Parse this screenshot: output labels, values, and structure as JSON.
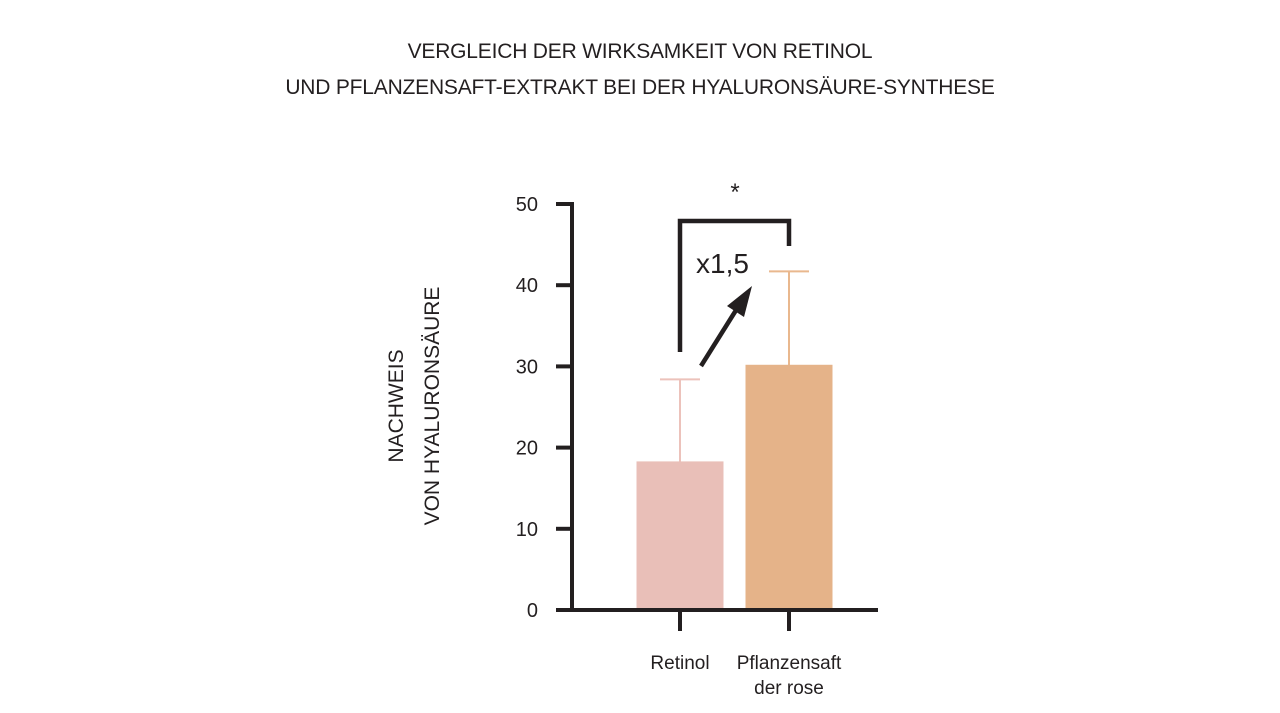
{
  "chart_data": {
    "type": "bar",
    "title_lines": [
      "VERGLEICH DER WIRKSAMKEIT VON RETINOL",
      "UND PFLANZENSAFT-EXTRAKT BEI DER HYALURONSÄURE-SYNTHESE"
    ],
    "ylabel_lines": [
      "NACHWEIS",
      "VON HYALURONSÄURE"
    ],
    "xlabel": "",
    "ylim": [
      0,
      50
    ],
    "yticks": [
      0,
      10,
      20,
      30,
      40,
      50
    ],
    "categories": [
      {
        "label_lines": [
          "Retinol"
        ]
      },
      {
        "label_lines": [
          "Pflanzensaft",
          "der rose"
        ]
      }
    ],
    "values": [
      18.3,
      30.2
    ],
    "error_upper": [
      28.4,
      41.7
    ],
    "colors": [
      "#e9bfb8",
      "#e5b389"
    ],
    "error_colors": [
      "#ecc2bb",
      "#e9b88e"
    ],
    "significance_marker": "*",
    "annotation": "x1,5",
    "grid": false
  }
}
